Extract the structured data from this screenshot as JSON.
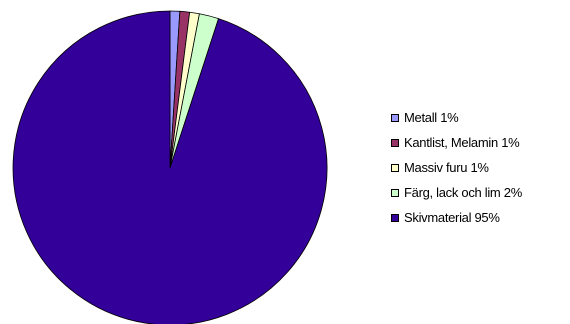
{
  "chart_data": {
    "type": "pie",
    "title": "",
    "start_angle_deg": 90,
    "direction": "clockwise",
    "slices": [
      {
        "label": "Metall 1%",
        "value": 1,
        "color": "#9999ff"
      },
      {
        "label": "Kantlist, Melamin 1%",
        "value": 1,
        "color": "#993366"
      },
      {
        "label": "Massiv furu 1%",
        "value": 1,
        "color": "#ffffcc"
      },
      {
        "label": "Färg, lack och lim 2%",
        "value": 2,
        "color": "#ccffcc"
      },
      {
        "label": "Skivmaterial 95%",
        "value": 95,
        "color": "#330099"
      }
    ],
    "legend": {
      "position": "right"
    }
  }
}
